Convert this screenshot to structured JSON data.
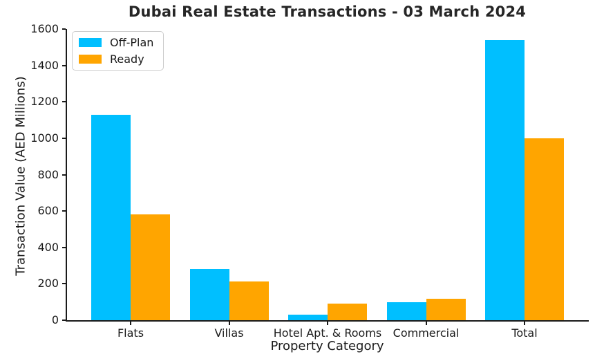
{
  "chart_data": {
    "type": "bar",
    "title": "Dubai Real Estate Transactions - 03 March 2024",
    "xlabel": "Property Category",
    "ylabel": "Transaction Value (AED Millions)",
    "categories": [
      "Flats",
      "Villas",
      "Hotel Apt. & Rooms",
      "Commercial",
      "Total"
    ],
    "series": [
      {
        "name": "Off-Plan",
        "color": "#00BFFF",
        "values": [
          1130,
          280,
          30,
          100,
          1540
        ]
      },
      {
        "name": "Ready",
        "color": "#FFA500",
        "values": [
          580,
          212,
          92,
          116,
          1000
        ]
      }
    ],
    "ylim": [
      0,
      1600
    ],
    "yticks": [
      0,
      200,
      400,
      600,
      800,
      1000,
      1200,
      1400,
      1600
    ],
    "legend_position": "upper left",
    "grid": false
  },
  "colors": {
    "offplan": "#00BFFF",
    "ready": "#FFA500",
    "text": "#1a1a1a",
    "spine": "#1a1a1a",
    "background": "#ffffff"
  }
}
